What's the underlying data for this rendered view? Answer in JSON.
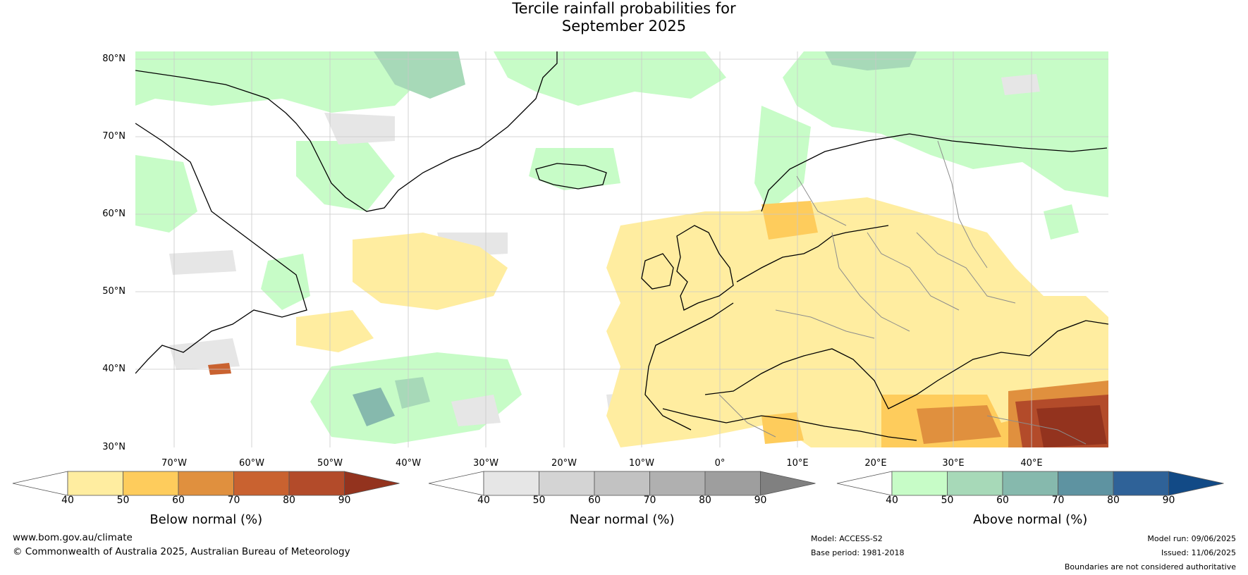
{
  "title_line1": "Tercile rainfall probabilities for",
  "title_line2": "September 2025",
  "lat_labels": [
    "80°N",
    "70°N",
    "60°N",
    "50°N",
    "40°N",
    "30°N"
  ],
  "lon_labels": [
    "70°W",
    "60°W",
    "50°W",
    "40°W",
    "30°W",
    "20°W",
    "10°W",
    "0°",
    "10°E",
    "20°E",
    "30°E",
    "40°E"
  ],
  "colorbars": [
    {
      "title": "Below normal (%)",
      "ticks": [
        "40",
        "50",
        "60",
        "70",
        "80",
        "90"
      ],
      "colors": [
        "#ffffff",
        "#ffeda0",
        "#fecc5c",
        "#e0903e",
        "#c96230",
        "#b34b2a",
        "#93331e"
      ]
    },
    {
      "title": "Near normal (%)",
      "ticks": [
        "40",
        "50",
        "60",
        "70",
        "80",
        "90"
      ],
      "colors": [
        "#ffffff",
        "#e6e6e6",
        "#d4d4d4",
        "#c2c2c2",
        "#b0b0b0",
        "#9e9e9e",
        "#808080"
      ]
    },
    {
      "title": "Above normal (%)",
      "ticks": [
        "40",
        "50",
        "60",
        "70",
        "80",
        "90"
      ],
      "colors": [
        "#ffffff",
        "#c7fcc7",
        "#a7d9b8",
        "#86b9ad",
        "#5e93a1",
        "#2f6298",
        "#124a86"
      ]
    }
  ],
  "footer": {
    "website": "www.bom.gov.au/climate",
    "copyright": "© Commonwealth of Australia 2025, Australian Bureau of Meteorology",
    "model": "Model: ACCESS-S2",
    "base_period": "Base period: 1981-2018",
    "model_run": "Model run: 09/06/2025",
    "issued": "Issued: 11/06/2025",
    "disclaimer": "Boundaries are not considered authoritative"
  }
}
